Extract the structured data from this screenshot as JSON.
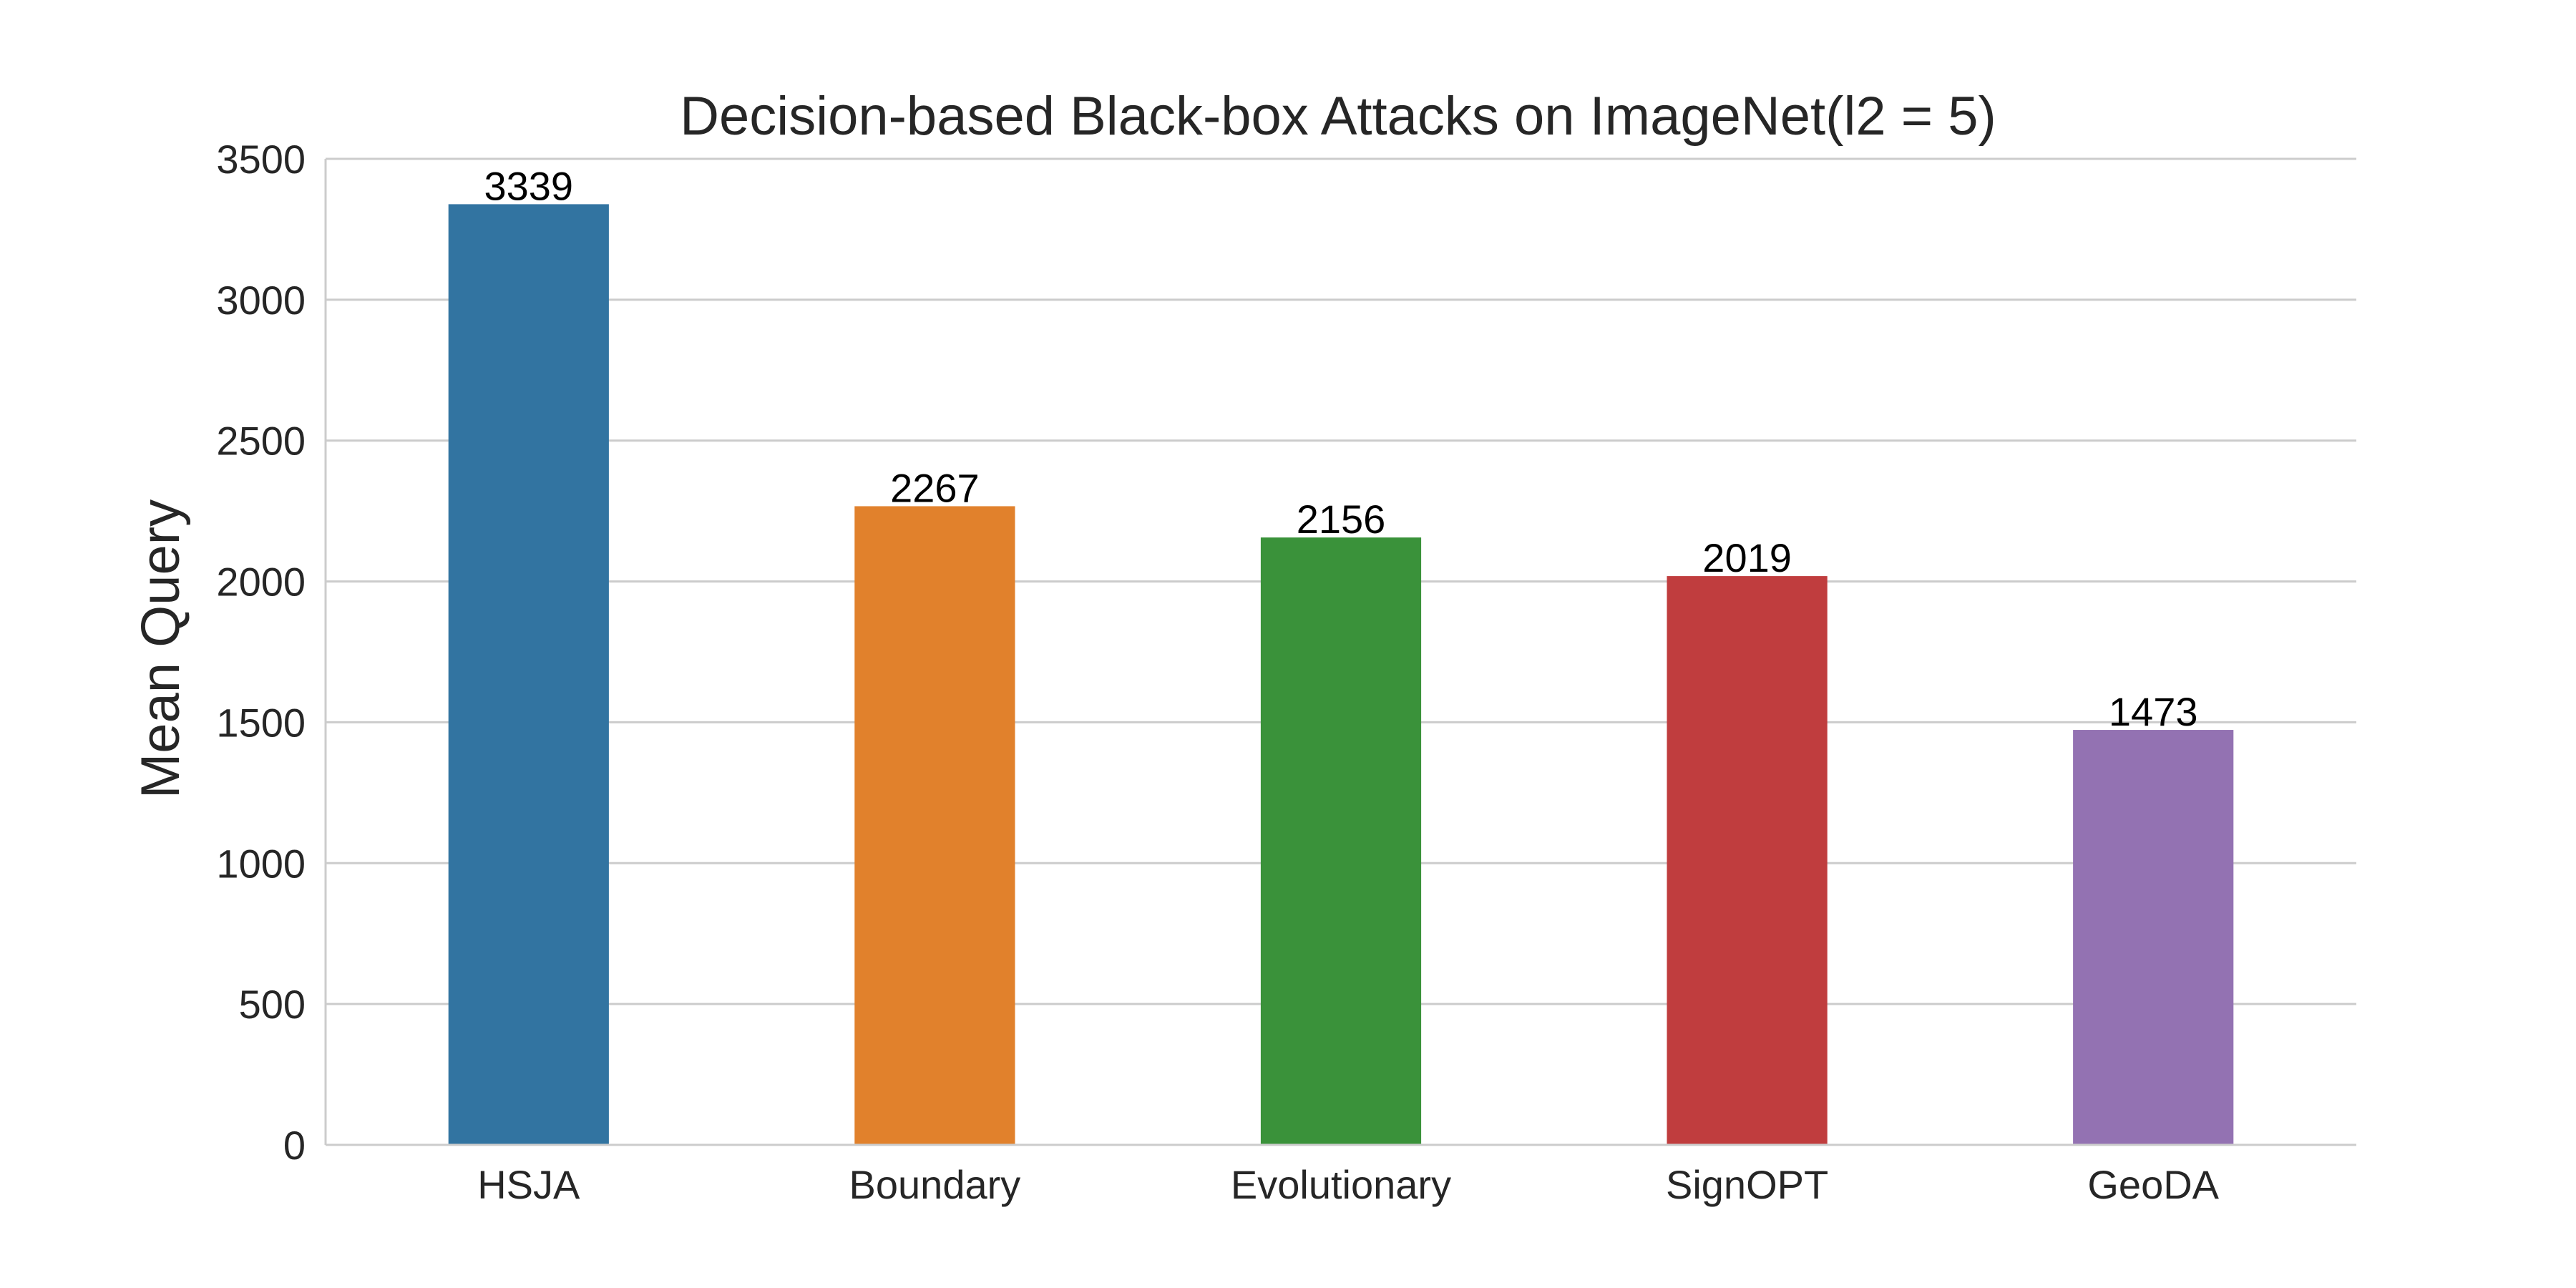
{
  "chart_data": {
    "type": "bar",
    "title": "Decision-based Black-box Attacks on ImageNet(l2 = 5)",
    "xlabel": "",
    "ylabel": "Mean Query",
    "categories": [
      "HSJA",
      "Boundary",
      "Evolutionary",
      "SignOPT",
      "GeoDA"
    ],
    "values": [
      3339,
      2267,
      2156,
      2019,
      1473
    ],
    "value_labels": [
      "3339",
      "2267",
      "2156",
      "2019",
      "1473"
    ],
    "colors": [
      "#3274a1",
      "#e1812c",
      "#3a923a",
      "#c03d3e",
      "#9372b2"
    ],
    "ylim": [
      0,
      3500
    ],
    "yticks": [
      0,
      500,
      1000,
      1500,
      2000,
      2500,
      3000,
      3500
    ],
    "grid": "horizontal",
    "legend": "none"
  }
}
